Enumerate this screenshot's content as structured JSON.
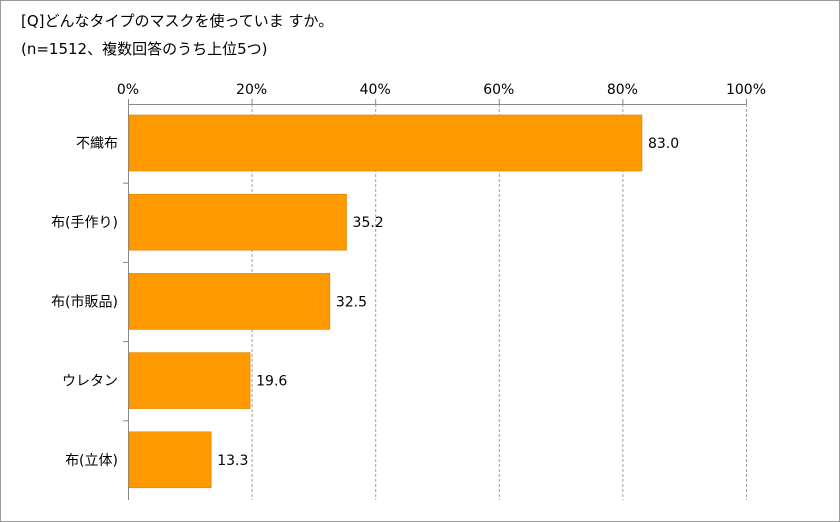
{
  "chart_data": {
    "type": "bar",
    "orientation": "horizontal",
    "title": "[Q]どんなタイプのマスクを使っていま すか。",
    "subtitle": "(n=1512、複数回答のうち上位5つ)",
    "categories": [
      "不織布",
      "布(手作り)",
      "布(市販品)",
      "ウレタン",
      "布(立体)"
    ],
    "values": [
      83.0,
      35.2,
      32.5,
      19.6,
      13.3
    ],
    "value_labels": [
      "83.0",
      "35.2",
      "32.5",
      "19.6",
      "13.3"
    ],
    "xlim": [
      0,
      100
    ],
    "xticks": [
      0,
      20,
      40,
      60,
      80,
      100
    ],
    "xtick_labels": [
      "0%",
      "20%",
      "40%",
      "60%",
      "80%",
      "100%"
    ],
    "axis_position": "top",
    "grid": true,
    "bar_color": "#FF9900",
    "xlabel": "",
    "ylabel": ""
  }
}
